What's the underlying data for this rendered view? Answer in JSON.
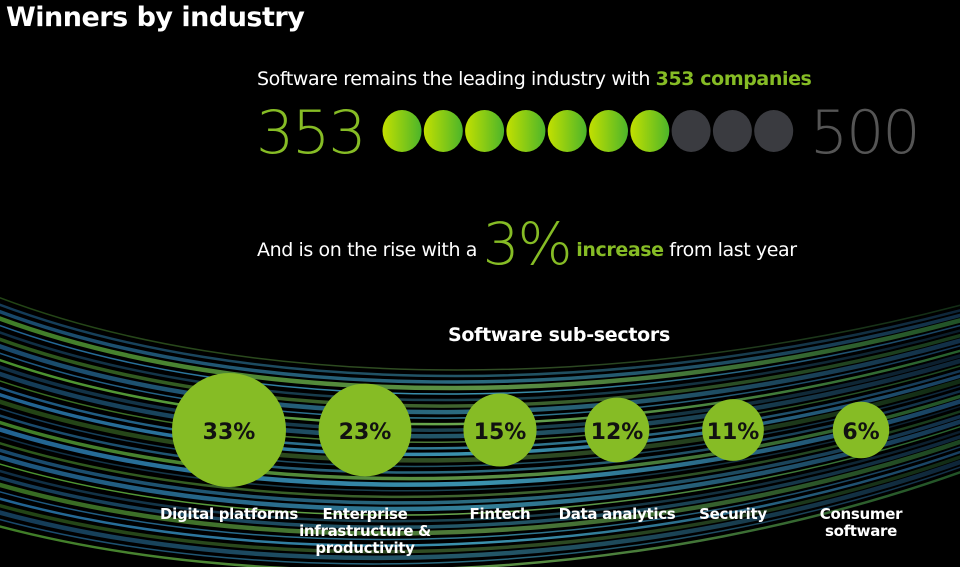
{
  "title": "Winners by industry",
  "headline": {
    "prefix": "Software remains the leading industry with ",
    "highlight": "353 companies"
  },
  "progress": {
    "value_label": "353",
    "max_label": "500",
    "value": 353,
    "max": 500,
    "dot_count": 10,
    "fill_color": "#86bc25",
    "empty_color": "#3a3b40"
  },
  "growth": {
    "prefix": "And is on the rise with a ",
    "value": "3%",
    "highlight": "increase",
    "suffix": " from last year"
  },
  "chart_data": {
    "type": "bubble",
    "title": "Software sub-sectors",
    "categories": [
      "Digital platforms",
      "Enterprise infrastructure & productivity",
      "Fintech",
      "Data analytics",
      "Security",
      "Consumer software"
    ],
    "values": [
      33,
      23,
      15,
      12,
      11,
      6
    ],
    "value_labels": [
      "33%",
      "23%",
      "15%",
      "12%",
      "11%",
      "6%"
    ],
    "unit": "%",
    "color": "#86bc25"
  }
}
